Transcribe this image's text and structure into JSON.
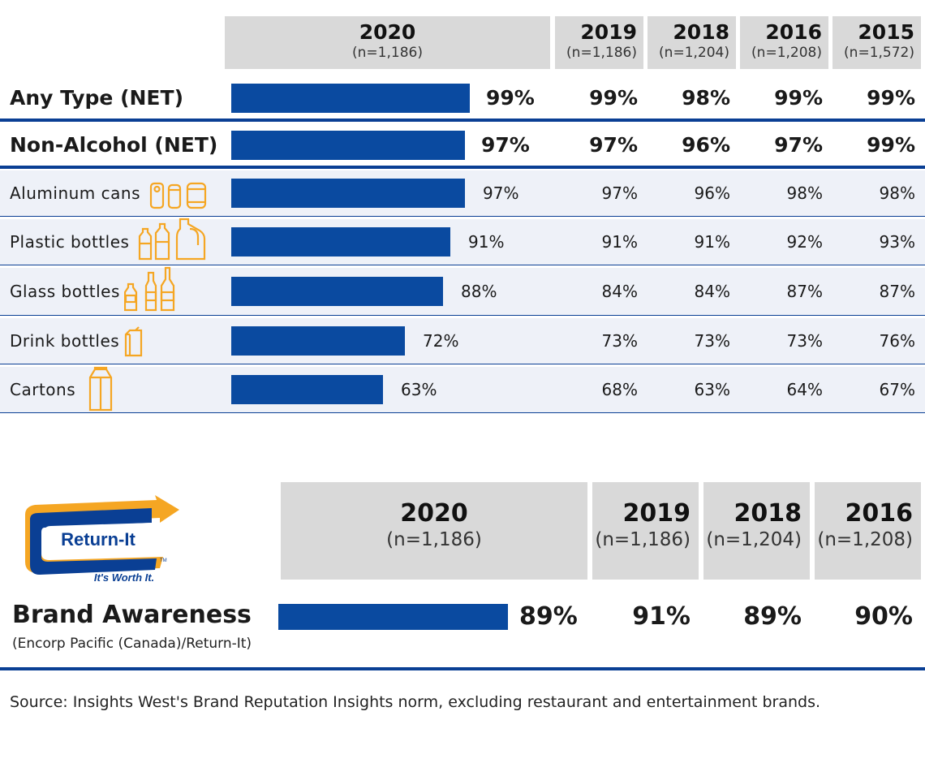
{
  "top_header": {
    "columns": [
      {
        "year": "2020",
        "n": "(n=1,186)"
      },
      {
        "year": "2019",
        "n": "(n=1,186)"
      },
      {
        "year": "2018",
        "n": "(n=1,204)"
      },
      {
        "year": "2016",
        "n": "(n=1,208)"
      },
      {
        "year": "2015",
        "n": "(n=1,572)"
      }
    ]
  },
  "rows": [
    {
      "label": "Any Type (NET)",
      "bar_label": "99%",
      "values": [
        "99%",
        "98%",
        "99%",
        "99%"
      ],
      "icon": ""
    },
    {
      "label": "Non-Alcohol (NET)",
      "bar_label": "97%",
      "values": [
        "97%",
        "96%",
        "97%",
        "99%"
      ],
      "icon": ""
    },
    {
      "label": "Aluminum cans",
      "bar_label": "97%",
      "values": [
        "97%",
        "96%",
        "98%",
        "98%"
      ],
      "icon": "cans-icon"
    },
    {
      "label": "Plastic bottles",
      "bar_label": "91%",
      "values": [
        "91%",
        "91%",
        "92%",
        "93%"
      ],
      "icon": "plastic-bottles-icon"
    },
    {
      "label": "Glass bottles",
      "bar_label": "88%",
      "values": [
        "84%",
        "84%",
        "87%",
        "87%"
      ],
      "icon": "glass-bottles-icon"
    },
    {
      "label": "Drink bottles",
      "bar_label": "72%",
      "values": [
        "73%",
        "73%",
        "73%",
        "76%"
      ],
      "icon": "drink-box-icon"
    },
    {
      "label": "Cartons",
      "bar_label": "63%",
      "values": [
        "68%",
        "63%",
        "64%",
        "67%"
      ],
      "icon": "carton-icon"
    }
  ],
  "brand": {
    "header": [
      {
        "year": "2020",
        "n": "(n=1,186)"
      },
      {
        "year": "2019",
        "n": "(n=1,186)"
      },
      {
        "year": "2018",
        "n": "(n=1,204)"
      },
      {
        "year": "2016",
        "n": "(n=1,208)"
      }
    ],
    "title": "Brand Awareness",
    "subtitle": "(Encorp Pacific (Canada)/Return-It)",
    "bar_label": "89%",
    "values": [
      "91%",
      "89%",
      "90%"
    ],
    "logo": {
      "name": "Return-It",
      "tagline": "It's Worth It.",
      "tm": "TM"
    }
  },
  "source": "Source: Insights West's Brand Reputation Insights norm, excluding restaurant and entertainment brands.",
  "colors": {
    "bar": "#0a4aa0",
    "rule": "#0a3f94",
    "header_bg": "#d9d9d9",
    "row_shade": "#eef1f8",
    "icon": "#f5a623"
  },
  "chart_data": [
    {
      "type": "bar",
      "orientation": "horizontal",
      "categories": [
        "Any Type (NET)",
        "Non-Alcohol (NET)",
        "Aluminum cans",
        "Plastic bottles",
        "Glass bottles",
        "Drink bottles",
        "Cartons"
      ],
      "series": [
        {
          "name": "2020",
          "values": [
            99,
            97,
            97,
            91,
            88,
            72,
            63
          ]
        },
        {
          "name": "2019",
          "values": [
            99,
            97,
            97,
            91,
            84,
            73,
            68
          ]
        },
        {
          "name": "2018",
          "values": [
            98,
            96,
            96,
            91,
            84,
            73,
            63
          ]
        },
        {
          "name": "2016",
          "values": [
            99,
            97,
            98,
            92,
            87,
            73,
            64
          ]
        },
        {
          "name": "2015",
          "values": [
            99,
            99,
            98,
            93,
            87,
            76,
            67
          ]
        }
      ],
      "unit": "%",
      "xlim": [
        0,
        100
      ]
    },
    {
      "type": "bar",
      "orientation": "horizontal",
      "categories": [
        "Brand Awareness"
      ],
      "series": [
        {
          "name": "2020",
          "values": [
            89
          ]
        },
        {
          "name": "2019",
          "values": [
            91
          ]
        },
        {
          "name": "2018",
          "values": [
            89
          ]
        },
        {
          "name": "2016",
          "values": [
            90
          ]
        }
      ],
      "unit": "%",
      "xlim": [
        0,
        100
      ]
    }
  ]
}
